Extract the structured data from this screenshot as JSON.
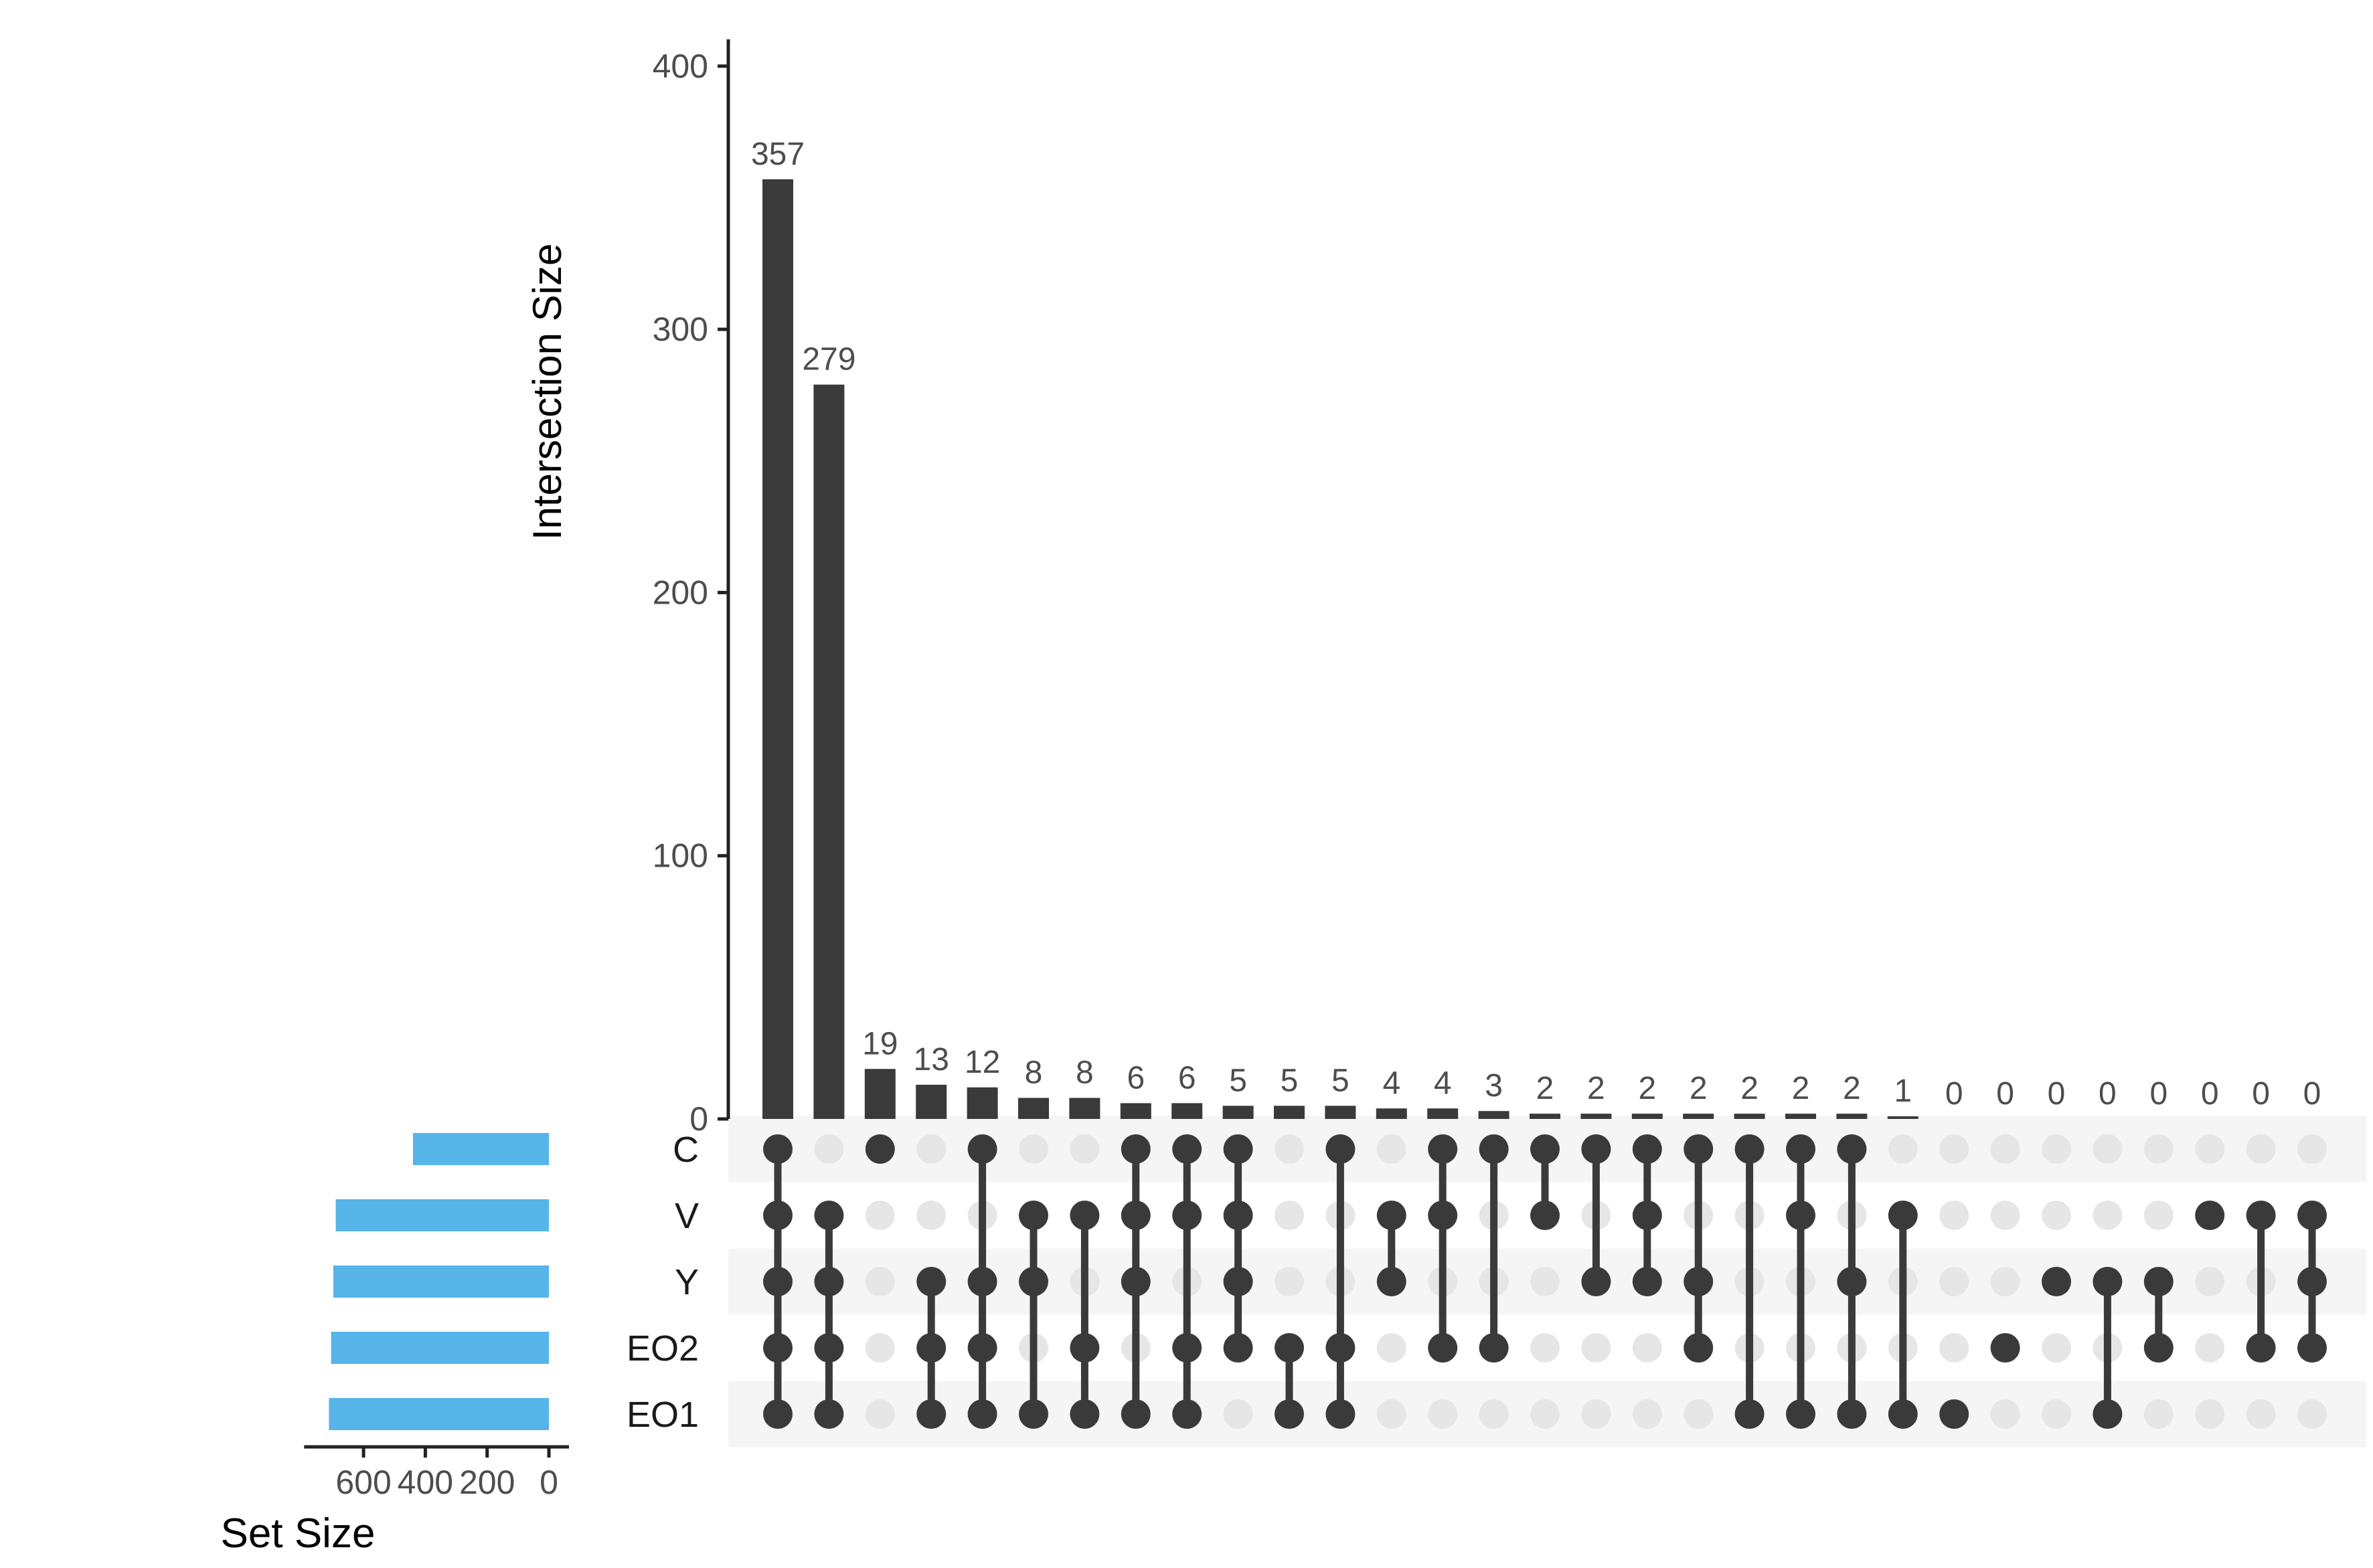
{
  "chart_data": {
    "type": "upset",
    "sets": [
      "C",
      "V",
      "Y",
      "EO2",
      "EO1"
    ],
    "set_sizes": [
      440,
      690,
      698,
      705,
      712
    ],
    "set_size_axis": {
      "label": "Set Size",
      "ticks": [
        600,
        400,
        200,
        0
      ],
      "range": [
        0,
        760
      ],
      "reversed": true
    },
    "intersection_axis": {
      "label": "Intersection Size",
      "ticks": [
        0,
        100,
        200,
        300,
        400
      ],
      "range": [
        0,
        400
      ]
    },
    "intersections": [
      {
        "members": [
          "C",
          "V",
          "Y",
          "EO2",
          "EO1"
        ],
        "size": 357
      },
      {
        "members": [
          "V",
          "Y",
          "EO2",
          "EO1"
        ],
        "size": 279
      },
      {
        "members": [
          "C"
        ],
        "size": 19
      },
      {
        "members": [
          "Y",
          "EO2",
          "EO1"
        ],
        "size": 13
      },
      {
        "members": [
          "C",
          "Y",
          "EO2",
          "EO1"
        ],
        "size": 12
      },
      {
        "members": [
          "V",
          "Y",
          "EO1"
        ],
        "size": 8
      },
      {
        "members": [
          "V",
          "EO2",
          "EO1"
        ],
        "size": 8
      },
      {
        "members": [
          "C",
          "V",
          "Y",
          "EO1"
        ],
        "size": 6
      },
      {
        "members": [
          "C",
          "V",
          "EO2",
          "EO1"
        ],
        "size": 6
      },
      {
        "members": [
          "C",
          "V",
          "Y",
          "EO2"
        ],
        "size": 5
      },
      {
        "members": [
          "EO2",
          "EO1"
        ],
        "size": 5
      },
      {
        "members": [
          "C",
          "EO2",
          "EO1"
        ],
        "size": 5
      },
      {
        "members": [
          "V",
          "Y"
        ],
        "size": 4
      },
      {
        "members": [
          "C",
          "V",
          "EO2"
        ],
        "size": 4
      },
      {
        "members": [
          "C",
          "EO2"
        ],
        "size": 3
      },
      {
        "members": [
          "C",
          "V"
        ],
        "size": 2
      },
      {
        "members": [
          "C",
          "Y"
        ],
        "size": 2
      },
      {
        "members": [
          "C",
          "V",
          "Y"
        ],
        "size": 2
      },
      {
        "members": [
          "C",
          "Y",
          "EO2"
        ],
        "size": 2
      },
      {
        "members": [
          "C",
          "EO1"
        ],
        "size": 2
      },
      {
        "members": [
          "C",
          "V",
          "EO1"
        ],
        "size": 2
      },
      {
        "members": [
          "C",
          "Y",
          "EO1"
        ],
        "size": 2
      },
      {
        "members": [
          "V",
          "EO1"
        ],
        "size": 1
      },
      {
        "members": [
          "EO1"
        ],
        "size": 0
      },
      {
        "members": [
          "EO2"
        ],
        "size": 0
      },
      {
        "members": [
          "Y"
        ],
        "size": 0
      },
      {
        "members": [
          "Y",
          "EO1"
        ],
        "size": 0
      },
      {
        "members": [
          "Y",
          "EO2"
        ],
        "size": 0
      },
      {
        "members": [
          "V"
        ],
        "size": 0
      },
      {
        "members": [
          "V",
          "EO2"
        ],
        "size": 0
      },
      {
        "members": [
          "V",
          "Y",
          "EO2"
        ],
        "size": 0
      }
    ],
    "colors": {
      "bars": "#3a3a3a",
      "set_bars": "#56b4e9",
      "dot_active": "#3a3a3a",
      "dot_inactive": "#e6e6e6",
      "row_shade": "#f5f5f5",
      "axis": "#222222",
      "tick_text": "#4d4d4d"
    }
  }
}
